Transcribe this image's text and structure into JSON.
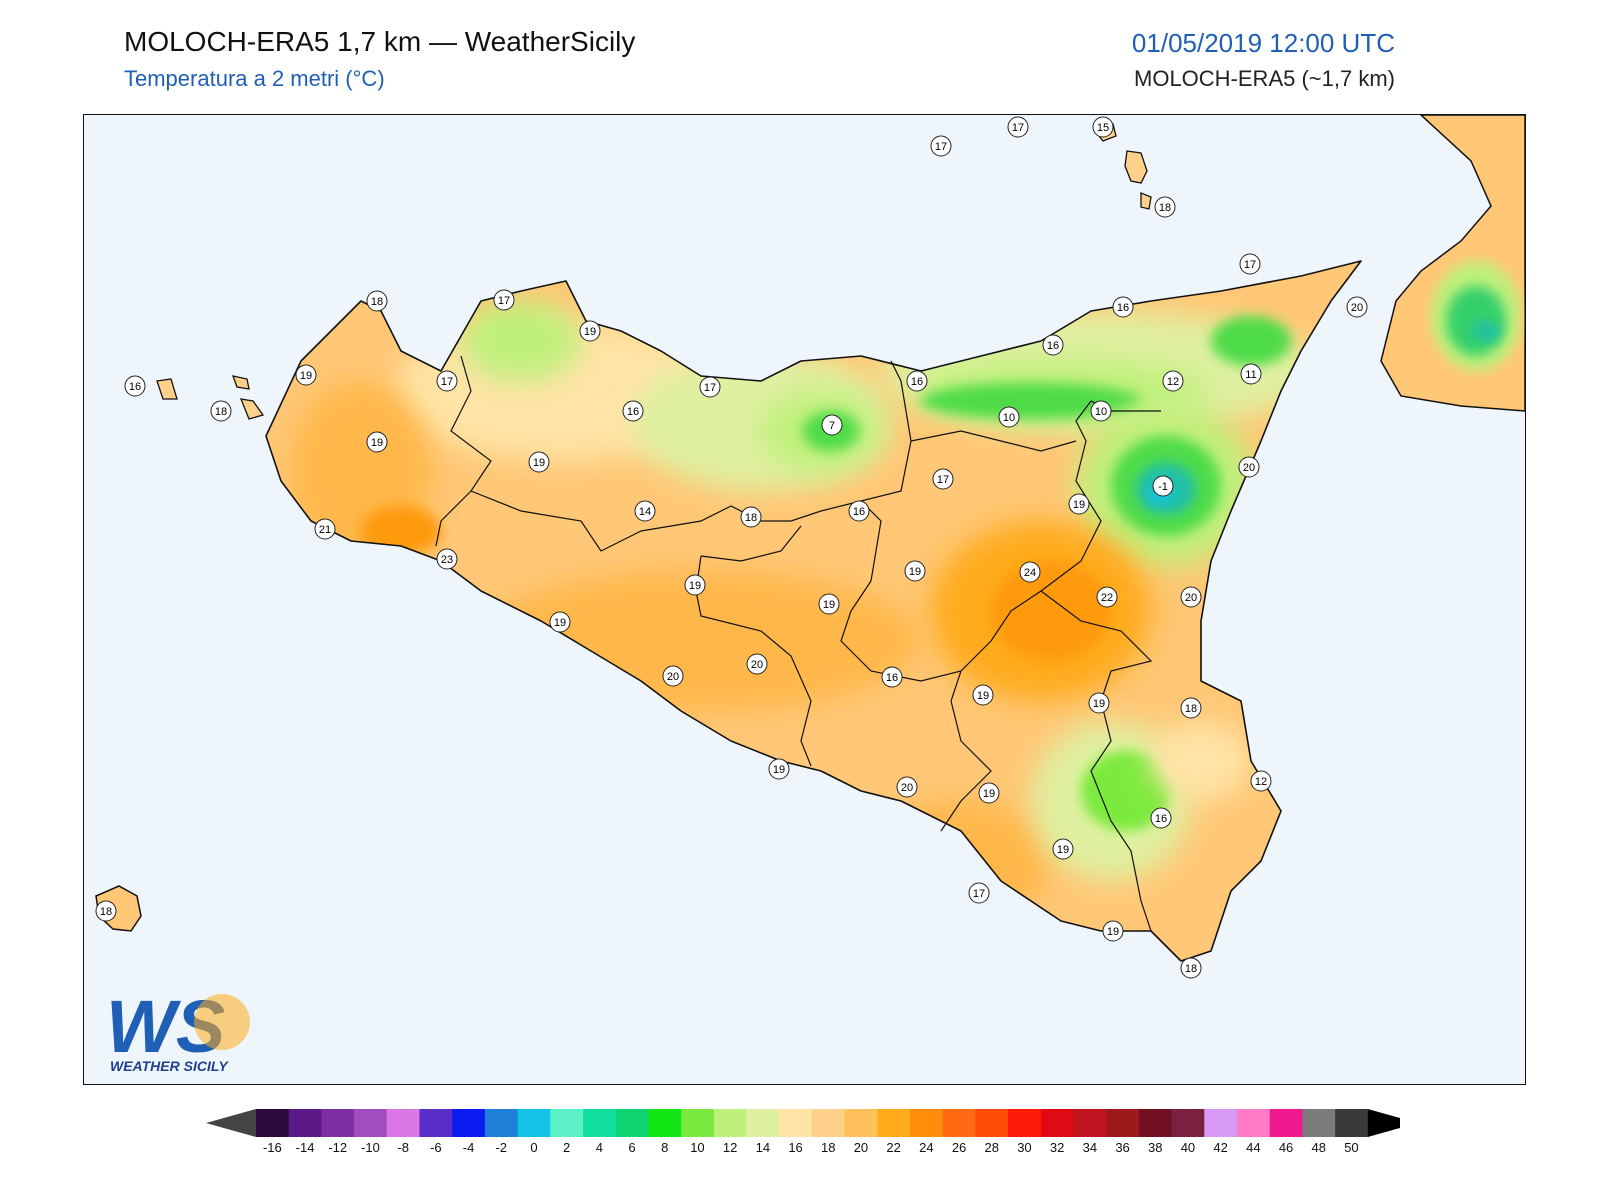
{
  "header": {
    "title": "MOLOCH-ERA5 1,7 km — WeatherSicily",
    "subtitle": "Temperatura a 2 metri (°C)",
    "datetime": "01/05/2019 12:00 UTC",
    "model": "MOLOCH-ERA5 (~1,7 km)"
  },
  "logo": {
    "letters": "WS",
    "caption": "WEATHER SICILY"
  },
  "colors": {
    "sea": "#eef6fb",
    "border": "#111111",
    "title_blue": "#1f5fb5"
  },
  "stations": [
    {
      "id": "s1",
      "value": "17"
    },
    {
      "id": "s2",
      "value": "17"
    },
    {
      "id": "s3",
      "value": "15"
    },
    {
      "id": "s4",
      "value": "18"
    },
    {
      "id": "s5",
      "value": "17"
    },
    {
      "id": "s6",
      "value": "16"
    },
    {
      "id": "s7",
      "value": "20"
    },
    {
      "id": "s8",
      "value": "18"
    },
    {
      "id": "s9",
      "value": "17"
    },
    {
      "id": "s10",
      "value": "19"
    },
    {
      "id": "s11",
      "value": "16"
    },
    {
      "id": "s12",
      "value": "19"
    },
    {
      "id": "s13",
      "value": "18"
    },
    {
      "id": "s14",
      "value": "17"
    },
    {
      "id": "s15",
      "value": "16"
    },
    {
      "id": "s16",
      "value": "7"
    },
    {
      "id": "s17",
      "value": "17"
    },
    {
      "id": "s18",
      "value": "16"
    },
    {
      "id": "s19",
      "value": "12"
    },
    {
      "id": "s20",
      "value": "11"
    },
    {
      "id": "s21",
      "value": "10"
    },
    {
      "id": "s22",
      "value": "10"
    },
    {
      "id": "s23",
      "value": "19"
    },
    {
      "id": "s24",
      "value": "19"
    },
    {
      "id": "s25",
      "value": "20"
    },
    {
      "id": "s26",
      "value": "17"
    },
    {
      "id": "s27",
      "value": "-1"
    },
    {
      "id": "s28",
      "value": "14"
    },
    {
      "id": "s29",
      "value": "18"
    },
    {
      "id": "s30",
      "value": "16"
    },
    {
      "id": "s31",
      "value": "19"
    },
    {
      "id": "s32",
      "value": "21"
    },
    {
      "id": "s33",
      "value": "23"
    },
    {
      "id": "s34",
      "value": "19"
    },
    {
      "id": "s35",
      "value": "24"
    },
    {
      "id": "s36",
      "value": "19"
    },
    {
      "id": "s37",
      "value": "22"
    },
    {
      "id": "s38",
      "value": "20"
    },
    {
      "id": "s39",
      "value": "19"
    },
    {
      "id": "s40",
      "value": "19"
    },
    {
      "id": "s41",
      "value": "20"
    },
    {
      "id": "s42",
      "value": "20"
    },
    {
      "id": "s43",
      "value": "16"
    },
    {
      "id": "s44",
      "value": "19"
    },
    {
      "id": "s45",
      "value": "19"
    },
    {
      "id": "s46",
      "value": "18"
    },
    {
      "id": "s47",
      "value": "19"
    },
    {
      "id": "s48",
      "value": "20"
    },
    {
      "id": "s49",
      "value": "19"
    },
    {
      "id": "s50",
      "value": "12"
    },
    {
      "id": "s51",
      "value": "16"
    },
    {
      "id": "s52",
      "value": "19"
    },
    {
      "id": "s53",
      "value": "17"
    },
    {
      "id": "s54",
      "value": "19"
    },
    {
      "id": "s55",
      "value": "18"
    }
  ],
  "colorbar": {
    "labels": [
      "-16",
      "-14",
      "-12",
      "-10",
      "-8",
      "-6",
      "-4",
      "-2",
      "0",
      "2",
      "4",
      "6",
      "8",
      "10",
      "12",
      "14",
      "16",
      "18",
      "20",
      "22",
      "24",
      "26",
      "28",
      "30",
      "32",
      "34",
      "36",
      "38",
      "40",
      "42",
      "44",
      "46",
      "48",
      "50"
    ],
    "colors": [
      "#2d0a3e",
      "#5b1a86",
      "#7e2fa3",
      "#a24dbd",
      "#dc78e6",
      "#5a2fc7",
      "#0a1cf0",
      "#1e7fd9",
      "#12c3e6",
      "#5cf0c9",
      "#12e0a0",
      "#10d470",
      "#12e614",
      "#7bea3e",
      "#bff07c",
      "#dff0a0",
      "#ffe4a6",
      "#ffd08a",
      "#ffc15c",
      "#ffab1a",
      "#ff8c0a",
      "#ff6a12",
      "#ff4a08",
      "#ff1a0a",
      "#e00a14",
      "#c21420",
      "#9e1a1a",
      "#701020",
      "#7a2040",
      "#d89bf5",
      "#ff7ac7",
      "#f01a8f",
      "#7b7b7b",
      "#3a3a3a"
    ]
  }
}
